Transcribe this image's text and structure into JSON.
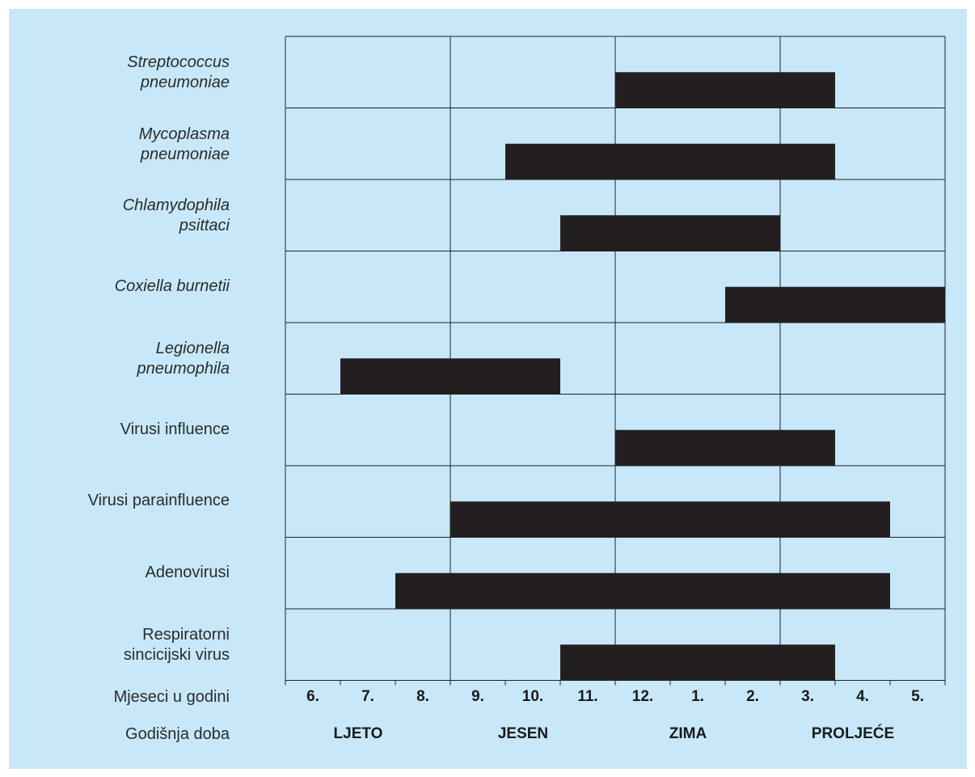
{
  "chart_data": {
    "type": "gantt",
    "months": [
      "6.",
      "7.",
      "8.",
      "9.",
      "10.",
      "11.",
      "12.",
      "1.",
      "2.",
      "3.",
      "4.",
      "5."
    ],
    "seasons": [
      "LJETO",
      "JESEN",
      "ZIMA",
      "PROLJEĆE"
    ],
    "x_axis_title": "Mjeseci u godini",
    "season_axis_title": "Godišnja doba",
    "rows": [
      {
        "name_lines": [
          "Streptococcus",
          "pneumoniae"
        ],
        "italic": true,
        "start": 6,
        "end": 10
      },
      {
        "name_lines": [
          "Mycoplasma",
          "pneumoniae"
        ],
        "italic": true,
        "start": 4,
        "end": 10
      },
      {
        "name_lines": [
          "Chlamydophila",
          "psittaci"
        ],
        "italic": true,
        "start": 5,
        "end": 9
      },
      {
        "name_lines": [
          "Coxiella burnetii"
        ],
        "italic": true,
        "start": 8,
        "end": 12
      },
      {
        "name_lines": [
          "Legionella",
          "pneumophila"
        ],
        "italic": true,
        "start": 1,
        "end": 5
      },
      {
        "name_lines": [
          "Virusi influence"
        ],
        "italic": false,
        "start": 6,
        "end": 10
      },
      {
        "name_lines": [
          "Virusi parainfluence"
        ],
        "italic": false,
        "start": 3,
        "end": 11
      },
      {
        "name_lines": [
          "Adenovirusi"
        ],
        "italic": false,
        "start": 2,
        "end": 11
      },
      {
        "name_lines": [
          "Respiratorni",
          "sincicijski virus"
        ],
        "italic": false,
        "start": 5,
        "end": 10
      }
    ],
    "colors": {
      "background": "#c8e8f9",
      "bar": "#231f20",
      "grid": "#222222"
    }
  }
}
